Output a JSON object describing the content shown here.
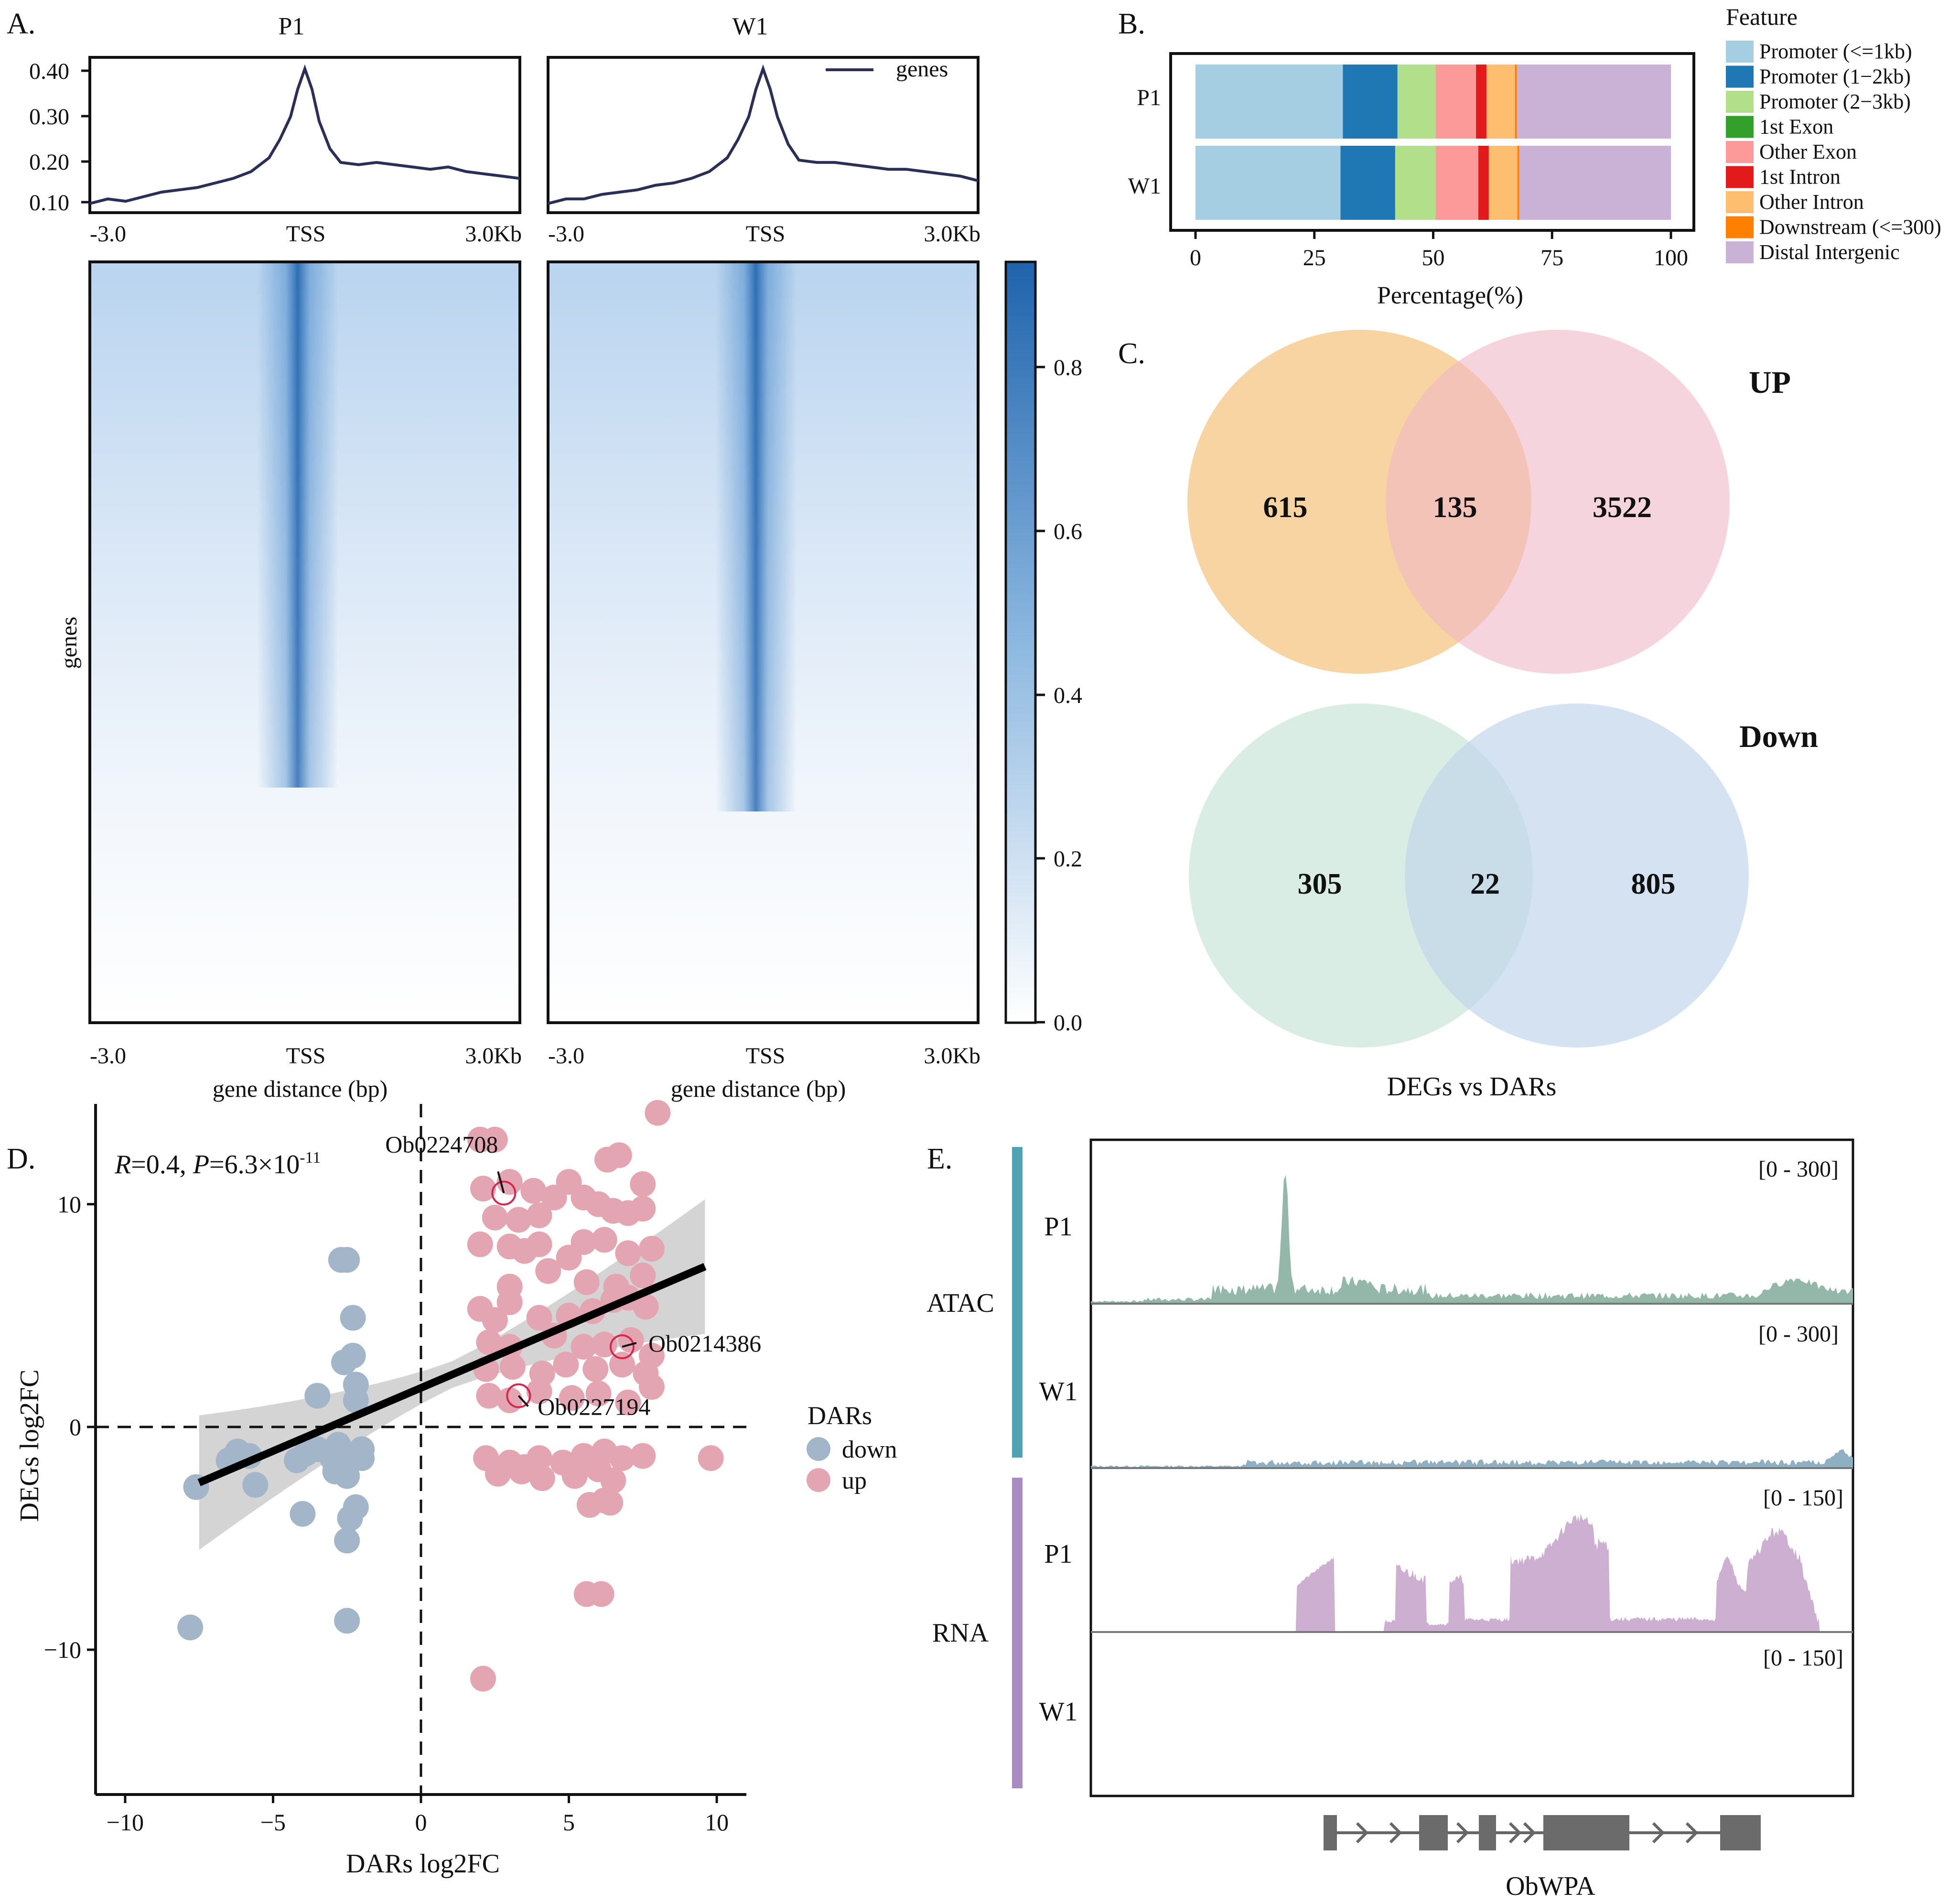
{
  "panel_labels": {
    "a": "A.",
    "b": "B.",
    "c": "C.",
    "d": "D.",
    "e": "E."
  },
  "chart_data": [
    {
      "id": "A-profile-heatmap",
      "type": "heatmap",
      "samples": [
        "P1",
        "W1"
      ],
      "profile_legend": "genes",
      "profile_yticks": [
        "0.40",
        "0.30",
        "0.20",
        "0.10"
      ],
      "profile_ylim": [
        0.09,
        0.43
      ],
      "profile_x_ticks": [
        "-3.0",
        "TSS",
        "3.0Kb"
      ],
      "profile_x": [
        -3.0,
        -2.75,
        -2.5,
        -2.25,
        -2.0,
        -1.75,
        -1.5,
        -1.25,
        -1.0,
        -0.75,
        -0.5,
        -0.35,
        -0.2,
        -0.1,
        0.0,
        0.1,
        0.2,
        0.35,
        0.5,
        0.75,
        1.0,
        1.25,
        1.5,
        1.75,
        2.0,
        2.25,
        2.5,
        2.75,
        3.0
      ],
      "profile_values": {
        "P1": [
          0.11,
          0.12,
          0.115,
          0.125,
          0.135,
          0.14,
          0.145,
          0.155,
          0.165,
          0.18,
          0.21,
          0.25,
          0.3,
          0.36,
          0.405,
          0.36,
          0.29,
          0.23,
          0.2,
          0.195,
          0.2,
          0.195,
          0.19,
          0.185,
          0.19,
          0.18,
          0.175,
          0.17,
          0.165
        ],
        "W1": [
          0.11,
          0.12,
          0.12,
          0.13,
          0.135,
          0.14,
          0.15,
          0.155,
          0.165,
          0.18,
          0.21,
          0.25,
          0.3,
          0.36,
          0.405,
          0.36,
          0.3,
          0.24,
          0.205,
          0.2,
          0.2,
          0.195,
          0.19,
          0.185,
          0.185,
          0.18,
          0.175,
          0.17,
          0.16
        ]
      },
      "ylabel": "genes",
      "xlabel": "gene distance (bp)",
      "heatmap_x_ticks": [
        "-3.0",
        "TSS",
        "3.0Kb"
      ],
      "colorbar_ticks": [
        "0.8",
        "0.6",
        "0.4",
        "0.2",
        "0.0"
      ],
      "colorbar_range": [
        0.0,
        0.93
      ],
      "colorbar_colors": [
        "#ffffff",
        "#2166b0"
      ]
    },
    {
      "id": "B-annotation",
      "type": "bar",
      "orientation": "horizontal-stacked",
      "categories": [
        "P1",
        "W1"
      ],
      "series": [
        {
          "name": "Promoter (<=1kb)",
          "color": "#a6cee3",
          "values": [
            31,
            30.5
          ]
        },
        {
          "name": "Promoter (1−2kb)",
          "color": "#1f78b4",
          "values": [
            11.5,
            11.5
          ]
        },
        {
          "name": "Promoter (2−3kb)",
          "color": "#b2df8a",
          "values": [
            8,
            8.5
          ]
        },
        {
          "name": "1st Exon",
          "color": "#33a02c",
          "values": [
            0,
            0
          ]
        },
        {
          "name": "Other Exon",
          "color": "#fb9a99",
          "values": [
            8.5,
            9
          ]
        },
        {
          "name": "1st Intron",
          "color": "#e31a1c",
          "values": [
            2.2,
            2.2
          ]
        },
        {
          "name": "Other Intron",
          "color": "#fdbf6f",
          "values": [
            6,
            6
          ]
        },
        {
          "name": "Downstream (<=300)",
          "color": "#ff7f00",
          "values": [
            0.4,
            0.4
          ]
        },
        {
          "name": "Distal Intergenic",
          "color": "#cab2d6",
          "values": [
            32.4,
            31.9
          ]
        }
      ],
      "xticks": [
        "0",
        "25",
        "50",
        "75",
        "100"
      ],
      "xlim": [
        0,
        100
      ],
      "xlabel": "Percentage(%)",
      "legend_title": "Feature"
    },
    {
      "id": "C-venn",
      "type": "venn",
      "title": "DEGs vs DARs",
      "sets": [
        {
          "label": "UP",
          "left": "615",
          "overlap": "135",
          "right": "3522",
          "left_color": "#f5c98a",
          "right_color": "#f0b8c8"
        },
        {
          "label": "Down",
          "left": "305",
          "overlap": "22",
          "right": "805",
          "left_color": "#c9e6da",
          "right_color": "#c2d6eb"
        }
      ]
    },
    {
      "id": "D-scatter",
      "type": "scatter",
      "annotation_R": "R",
      "annotation_text_1": "=0.4, ",
      "annotation_P": "P",
      "annotation_text_2": "=6.3×10",
      "annotation_exp": "-11",
      "xlabel": "DARs log2FC",
      "ylabel": "DEGs log2FC",
      "xlim": [
        -11,
        11
      ],
      "ylim": [
        -16.5,
        14.5
      ],
      "xticks": [
        "−10",
        "−5",
        "0",
        "5",
        "10"
      ],
      "yticks": [
        "10",
        "0",
        "−10"
      ],
      "legend_title": "DARs",
      "legend": [
        {
          "name": "down",
          "color": "#a3b5c9"
        },
        {
          "name": "up",
          "color": "#e3a5b2"
        }
      ],
      "regression": {
        "x0": -7.5,
        "y0": -2.5,
        "x1": 9.6,
        "y1": 7.2
      },
      "labeled_points": [
        {
          "name": "Ob0224708",
          "x": 2.8,
          "y": 10.5
        },
        {
          "name": "Ob0214386",
          "x": 6.8,
          "y": 3.6
        },
        {
          "name": "Ob0227194",
          "x": 3.3,
          "y": 1.4
        }
      ],
      "points_down": [
        [
          -7.6,
          -2.7
        ],
        [
          -7.8,
          -9.0
        ],
        [
          -6.5,
          -1.5
        ],
        [
          -6.2,
          -1.1
        ],
        [
          -5.8,
          -1.3
        ],
        [
          -5.6,
          -2.6
        ],
        [
          -4.2,
          -1.5
        ],
        [
          -3.9,
          -1.2
        ],
        [
          -4.0,
          -3.9
        ],
        [
          -3.5,
          -1.0
        ],
        [
          -3.5,
          1.4
        ],
        [
          -3.0,
          -1.4
        ],
        [
          -2.9,
          -2.0
        ],
        [
          -2.8,
          -0.8
        ],
        [
          -2.7,
          7.5
        ],
        [
          -2.5,
          7.5
        ],
        [
          -2.6,
          2.9
        ],
        [
          -2.3,
          3.2
        ],
        [
          -2.2,
          1.9
        ],
        [
          -2.5,
          -1.5
        ],
        [
          -2.2,
          -1.3
        ],
        [
          -2.0,
          -1.4
        ],
        [
          -2.5,
          -2.2
        ],
        [
          -2.2,
          -3.6
        ],
        [
          -2.4,
          -4.1
        ],
        [
          -2.5,
          -5.1
        ],
        [
          -2.5,
          -8.7
        ],
        [
          -2.3,
          4.9
        ],
        [
          -2.2,
          1.2
        ],
        [
          -2.0,
          -1.0
        ]
      ],
      "points_up": [
        [
          2.0,
          12.9
        ],
        [
          2.5,
          12.9
        ],
        [
          2.1,
          10.7
        ],
        [
          3.0,
          11.0
        ],
        [
          3.8,
          10.6
        ],
        [
          2.5,
          9.4
        ],
        [
          3.3,
          9.3
        ],
        [
          4.0,
          9.5
        ],
        [
          4.5,
          10.3
        ],
        [
          5.0,
          11.0
        ],
        [
          5.5,
          10.3
        ],
        [
          6.0,
          10.0
        ],
        [
          6.5,
          9.7
        ],
        [
          7.0,
          9.6
        ],
        [
          7.5,
          10.9
        ],
        [
          7.5,
          9.8
        ],
        [
          6.3,
          12.0
        ],
        [
          6.7,
          12.2
        ],
        [
          8.0,
          14.1
        ],
        [
          2.0,
          8.2
        ],
        [
          3.0,
          8.1
        ],
        [
          3.5,
          7.9
        ],
        [
          4.0,
          8.2
        ],
        [
          5.0,
          7.6
        ],
        [
          5.5,
          8.3
        ],
        [
          6.2,
          8.4
        ],
        [
          7.0,
          7.8
        ],
        [
          7.8,
          8.0
        ],
        [
          3.0,
          6.3
        ],
        [
          4.3,
          7.0
        ],
        [
          5.6,
          6.5
        ],
        [
          6.6,
          6.3
        ],
        [
          7.5,
          6.8
        ],
        [
          2.0,
          5.3
        ],
        [
          2.5,
          4.8
        ],
        [
          3.0,
          5.6
        ],
        [
          4.0,
          4.9
        ],
        [
          5.0,
          5.0
        ],
        [
          5.8,
          5.2
        ],
        [
          6.5,
          5.7
        ],
        [
          7.0,
          5.8
        ],
        [
          7.6,
          5.4
        ],
        [
          2.3,
          3.8
        ],
        [
          3.0,
          3.6
        ],
        [
          4.5,
          4.1
        ],
        [
          5.5,
          3.6
        ],
        [
          6.2,
          3.7
        ],
        [
          7.1,
          3.9
        ],
        [
          7.8,
          3.2
        ],
        [
          2.2,
          2.6
        ],
        [
          3.1,
          2.7
        ],
        [
          4.1,
          2.4
        ],
        [
          4.9,
          2.8
        ],
        [
          5.9,
          2.6
        ],
        [
          6.8,
          2.8
        ],
        [
          7.6,
          2.4
        ],
        [
          2.3,
          1.4
        ],
        [
          3.0,
          1.2
        ],
        [
          4.0,
          1.6
        ],
        [
          5.1,
          1.3
        ],
        [
          6.0,
          1.5
        ],
        [
          7.0,
          1.1
        ],
        [
          7.8,
          1.8
        ],
        [
          2.2,
          -1.4
        ],
        [
          3.0,
          -1.6
        ],
        [
          3.5,
          -1.8
        ],
        [
          4.0,
          -1.4
        ],
        [
          4.8,
          -1.6
        ],
        [
          5.5,
          -1.3
        ],
        [
          6.2,
          -1.1
        ],
        [
          6.8,
          -1.4
        ],
        [
          7.5,
          -1.3
        ],
        [
          2.6,
          -2.1
        ],
        [
          3.4,
          -2.0
        ],
        [
          4.1,
          -2.3
        ],
        [
          5.2,
          -2.2
        ],
        [
          6.0,
          -1.9
        ],
        [
          6.5,
          -2.4
        ],
        [
          5.7,
          -3.5
        ],
        [
          6.4,
          -3.4
        ],
        [
          6.2,
          -3.3
        ],
        [
          5.6,
          -7.5
        ],
        [
          6.1,
          -7.5
        ],
        [
          9.8,
          -1.4
        ],
        [
          2.1,
          -11.3
        ]
      ]
    },
    {
      "id": "E-tracks",
      "type": "area",
      "assays": [
        "ATAC",
        "RNA"
      ],
      "tracks": [
        {
          "sample": "P1",
          "assay": "ATAC",
          "range": "[0 - 300]",
          "max": 300,
          "color": "#93b8a9"
        },
        {
          "sample": "W1",
          "assay": "ATAC",
          "range": "[0 - 300]",
          "max": 300,
          "color": "#8fb0c3"
        },
        {
          "sample": "P1",
          "assay": "RNA",
          "range": "[0 - 150]",
          "max": 150,
          "color": "#cdb0d1"
        },
        {
          "sample": "W1",
          "assay": "RNA",
          "range": "[0 - 150]",
          "max": 150,
          "color": "#cdb0d1"
        }
      ],
      "assay_colors": {
        "ATAC": "#4fa3b4",
        "RNA": "#a98bc2"
      },
      "gene": "ObWPA"
    }
  ]
}
